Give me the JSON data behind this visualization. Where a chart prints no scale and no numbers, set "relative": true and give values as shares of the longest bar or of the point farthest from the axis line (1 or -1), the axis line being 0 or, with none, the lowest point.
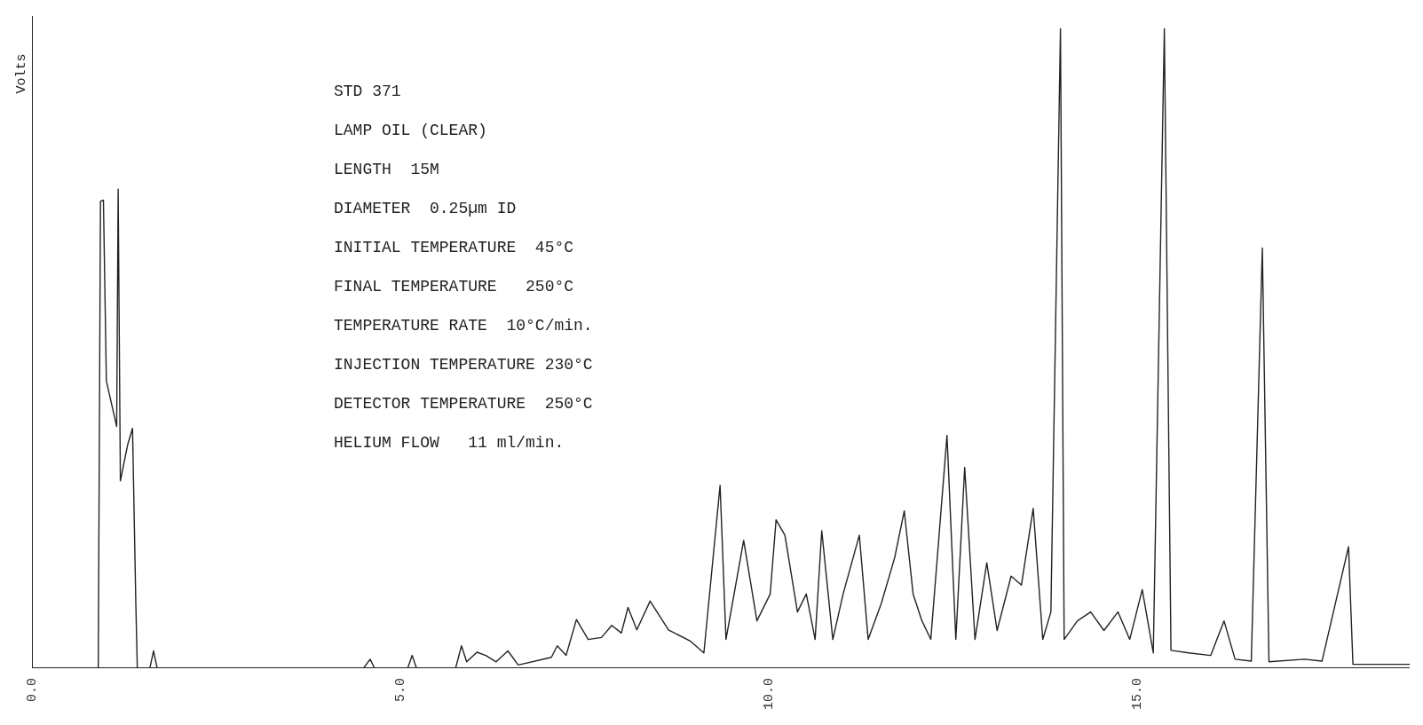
{
  "chart_data": {
    "type": "line",
    "relative": true,
    "ylabel": "Volts",
    "xlim": [
      0,
      18.7
    ],
    "xticks": [
      {
        "value": 0,
        "label": "0.0"
      },
      {
        "value": 5,
        "label": "5.0"
      },
      {
        "value": 10,
        "label": "10.0"
      },
      {
        "value": 15,
        "label": "15.0"
      }
    ],
    "grid": false,
    "legend": false,
    "marker": "none",
    "line_style": "solid",
    "annotations": [
      "STD 371",
      "LAMP OIL (CLEAR)",
      "LENGTH  15M",
      "DIAMETER  0.25µm ID",
      "INITIAL TEMPERATURE  45°C",
      "FINAL TEMPERATURE   250°C",
      "TEMPERATURE RATE  10°C/min.",
      "INJECTION TEMPERATURE 230°C",
      "DETECTOR TEMPERATURE  250°C",
      "HELIUM FLOW   11 ml/min."
    ],
    "series": [
      {
        "color": "#222222",
        "x": [
          0,
          0.9,
          0.93,
          0.97,
          1.01,
          1.15,
          1.17,
          1.2,
          1.3,
          1.365,
          1.41,
          1.43,
          1.6,
          1.65,
          1.7,
          4.5,
          4.59,
          4.65,
          5.1,
          5.16,
          5.22,
          5.75,
          5.83,
          5.9,
          6.04,
          6.16,
          6.3,
          6.46,
          6.6,
          7.05,
          7.13,
          7.25,
          7.39,
          7.55,
          7.73,
          7.87,
          8.0,
          8.09,
          8.21,
          8.39,
          8.64,
          8.94,
          9.12,
          9.34,
          9.42,
          9.66,
          9.84,
          10.02,
          10.1,
          10.22,
          10.39,
          10.51,
          10.63,
          10.72,
          10.87,
          11.01,
          11.23,
          11.35,
          11.53,
          11.71,
          11.84,
          11.96,
          12.08,
          12.2,
          12.42,
          12.54,
          12.66,
          12.8,
          12.96,
          13.1,
          13.29,
          13.43,
          13.59,
          13.72,
          13.83,
          13.96,
          14.01,
          14.19,
          14.37,
          14.55,
          14.74,
          14.9,
          15.07,
          15.22,
          15.37,
          15.46,
          15.7,
          16.0,
          16.18,
          16.33,
          16.55,
          16.7,
          16.79,
          17.27,
          17.51,
          17.87,
          17.93,
          18.48,
          18.7
        ],
        "values": [
          0,
          0,
          0.73,
          0.732,
          0.449,
          0.378,
          0.749,
          0.293,
          0.35,
          0.375,
          0.1,
          0,
          0,
          0.027,
          0,
          0,
          0.014,
          0,
          0,
          0.02,
          0,
          0,
          0.035,
          0.01,
          0.025,
          0.02,
          0.01,
          0.027,
          0.005,
          0.017,
          0.035,
          0.02,
          0.076,
          0.045,
          0.048,
          0.067,
          0.055,
          0.095,
          0.06,
          0.105,
          0.06,
          0.042,
          0.024,
          0.286,
          0.045,
          0.2,
          0.074,
          0.116,
          0.232,
          0.208,
          0.088,
          0.116,
          0.045,
          0.215,
          0.045,
          0.116,
          0.208,
          0.045,
          0.102,
          0.173,
          0.246,
          0.116,
          0.074,
          0.045,
          0.364,
          0.045,
          0.314,
          0.045,
          0.165,
          0.059,
          0.144,
          0.13,
          0.25,
          0.045,
          0.088,
          1.0,
          0.045,
          0.074,
          0.088,
          0.059,
          0.088,
          0.045,
          0.123,
          0.024,
          1.0,
          0.028,
          0.024,
          0.02,
          0.074,
          0.014,
          0.011,
          0.657,
          0.01,
          0.014,
          0.011,
          0.19,
          0.006,
          0.006,
          0.006
        ]
      }
    ]
  }
}
